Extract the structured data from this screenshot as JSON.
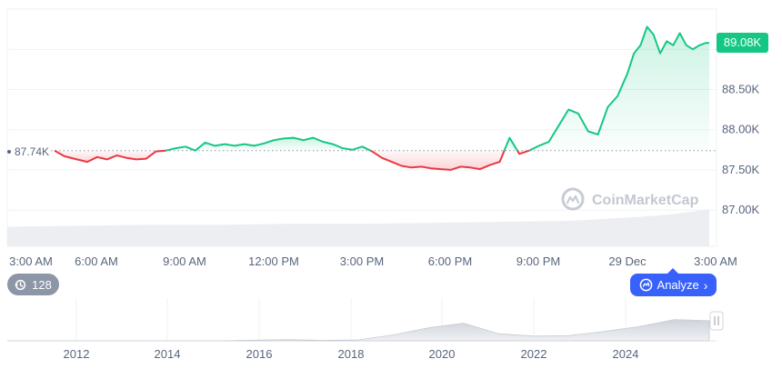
{
  "watermark": "CoinMarketCap",
  "chart_data": {
    "type": "line",
    "title": "",
    "xlabel": "",
    "ylabel": "",
    "x_ticks": [
      "3:00 AM",
      "6:00 AM",
      "9:00 AM",
      "12:00 PM",
      "3:00 PM",
      "6:00 PM",
      "9:00 PM",
      "29 Dec",
      "3:00 AM"
    ],
    "y_ticks": [
      "87.00K",
      "87.50K",
      "88.00K",
      "88.50K"
    ],
    "ylim": [
      86.55,
      89.5
    ],
    "reference_value": 87.74,
    "reference_label": "87.74K",
    "current_value": 89.08,
    "current_label": "89.08K",
    "colors": {
      "above": "#16c784",
      "below": "#ea3943",
      "current_badge": "#16c784",
      "reference_line": "#8f95a3"
    },
    "series": [
      {
        "x": [
          0.0,
          0.015,
          0.03,
          0.05,
          0.065,
          0.08,
          0.095,
          0.11,
          0.125,
          0.14,
          0.155,
          0.17,
          0.185,
          0.2,
          0.215,
          0.23,
          0.245,
          0.26,
          0.275,
          0.29,
          0.305,
          0.32,
          0.335,
          0.35,
          0.365,
          0.38,
          0.395,
          0.41,
          0.425,
          0.44,
          0.455,
          0.47,
          0.485,
          0.5,
          0.515,
          0.53,
          0.545,
          0.56,
          0.575,
          0.59,
          0.605,
          0.62,
          0.635,
          0.65,
          0.665,
          0.68,
          0.695,
          0.71,
          0.725,
          0.74,
          0.755,
          0.77,
          0.785,
          0.8,
          0.815,
          0.83,
          0.845,
          0.86,
          0.875,
          0.885,
          0.895,
          0.905,
          0.915,
          0.925,
          0.935,
          0.945,
          0.955,
          0.965,
          0.975,
          0.985,
          0.995,
          1.0
        ],
        "y": [
          87.74,
          87.67,
          87.64,
          87.6,
          87.66,
          87.63,
          87.68,
          87.65,
          87.63,
          87.64,
          87.73,
          87.74,
          87.77,
          87.79,
          87.74,
          87.84,
          87.8,
          87.82,
          87.8,
          87.82,
          87.8,
          87.83,
          87.87,
          87.89,
          87.9,
          87.87,
          87.9,
          87.85,
          87.82,
          87.77,
          87.75,
          87.79,
          87.73,
          87.65,
          87.6,
          87.55,
          87.53,
          87.54,
          87.52,
          87.51,
          87.5,
          87.54,
          87.53,
          87.51,
          87.56,
          87.6,
          87.9,
          87.7,
          87.74,
          87.8,
          87.85,
          88.05,
          88.25,
          88.2,
          87.98,
          87.94,
          88.28,
          88.42,
          88.7,
          88.95,
          89.05,
          89.28,
          89.18,
          88.95,
          89.1,
          89.05,
          89.2,
          89.05,
          89.0,
          89.05,
          89.08,
          89.08
        ]
      }
    ],
    "volume": {
      "x": [
        0.0,
        0.1,
        0.2,
        0.3,
        0.4,
        0.5,
        0.6,
        0.7,
        0.8,
        0.85,
        0.9,
        0.95,
        1.0
      ],
      "y": [
        0.2,
        0.21,
        0.22,
        0.22,
        0.23,
        0.23,
        0.24,
        0.25,
        0.26,
        0.28,
        0.3,
        0.33,
        0.38
      ]
    },
    "overview": {
      "x_ticks": [
        "2012",
        "2014",
        "2016",
        "2018",
        "2020",
        "2022",
        "2024"
      ],
      "x": [
        0.0,
        0.1,
        0.2,
        0.3,
        0.4,
        0.45,
        0.5,
        0.55,
        0.6,
        0.65,
        0.7,
        0.75,
        0.8,
        0.85,
        0.9,
        0.95,
        1.0
      ],
      "y": [
        0.0,
        0.0,
        0.0,
        0.0,
        0.05,
        0.02,
        0.04,
        0.25,
        0.55,
        0.75,
        0.3,
        0.2,
        0.22,
        0.4,
        0.6,
        0.9,
        0.85
      ]
    }
  },
  "controls": {
    "history_count": "128",
    "analyze_label": "Analyze",
    "icon_history": "history-clock-icon",
    "icon_analyze": "coinmarketcap-logo-icon",
    "icon_chevron": "chevron-right-icon",
    "icon_handle": "drag-handle-icon"
  }
}
